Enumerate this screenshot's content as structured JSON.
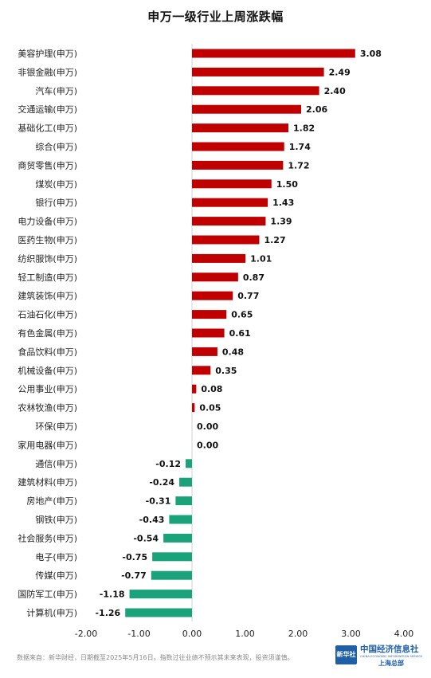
{
  "chart_data": {
    "type": "bar",
    "orientation": "horizontal",
    "title": "申万一级行业上周涨跌幅",
    "xlim": [
      -2.0,
      4.0
    ],
    "x_ticks": [
      "-2.00",
      "-1.00",
      "0.00",
      "1.00",
      "2.00",
      "3.00",
      "4.00"
    ],
    "grid": false,
    "colors": {
      "positive": "#c00000",
      "negative": "#1aa37a"
    },
    "categories": [
      "美容护理(申万)",
      "非银金融(申万)",
      "汽车(申万)",
      "交通运输(申万)",
      "基础化工(申万)",
      "综合(申万)",
      "商贸零售(申万)",
      "煤炭(申万)",
      "银行(申万)",
      "电力设备(申万)",
      "医药生物(申万)",
      "纺织服饰(申万)",
      "轻工制造(申万)",
      "建筑装饰(申万)",
      "石油石化(申万)",
      "有色金属(申万)",
      "食品饮料(申万)",
      "机械设备(申万)",
      "公用事业(申万)",
      "农林牧渔(申万)",
      "环保(申万)",
      "家用电器(申万)",
      "通信(申万)",
      "建筑材料(申万)",
      "房地产(申万)",
      "钢铁(申万)",
      "社会服务(申万)",
      "电子(申万)",
      "传媒(申万)",
      "国防军工(申万)",
      "计算机(申万)"
    ],
    "values": [
      3.08,
      2.49,
      2.4,
      2.06,
      1.82,
      1.74,
      1.72,
      1.5,
      1.43,
      1.39,
      1.27,
      1.01,
      0.87,
      0.77,
      0.65,
      0.61,
      0.48,
      0.35,
      0.08,
      0.05,
      0.0,
      0.0,
      -0.12,
      -0.24,
      -0.31,
      -0.43,
      -0.54,
      -0.75,
      -0.77,
      -1.18,
      -1.26
    ],
    "value_labels": [
      "3.08",
      "2.49",
      "2.40",
      "2.06",
      "1.82",
      "1.74",
      "1.72",
      "1.50",
      "1.43",
      "1.39",
      "1.27",
      "1.01",
      "0.87",
      "0.77",
      "0.65",
      "0.61",
      "0.48",
      "0.35",
      "0.08",
      "0.05",
      "0.00",
      "0.00",
      "-0.12",
      "-0.24",
      "-0.31",
      "-0.43",
      "-0.54",
      "-0.75",
      "-0.77",
      "-1.18",
      "-1.26"
    ]
  },
  "footer": {
    "note": "数据来自：新华财经，日期截至2025年5月16日。指数过往业绩不预示其未来表现，投资须谨慎。"
  },
  "brand": {
    "logo_text": "新华社",
    "name": "中国经济信息社",
    "name_en": "CHINA ECONOMIC INFORMATION SERVICE",
    "sub": "上海总部"
  }
}
